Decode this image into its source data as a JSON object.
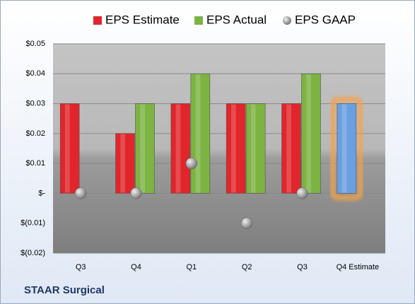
{
  "chart_data": {
    "type": "bar",
    "title": "STAAR Surgical",
    "categories": [
      "Q3",
      "Q4",
      "Q1",
      "Q2",
      "Q3",
      "Q4 Estimate"
    ],
    "series": [
      {
        "name": "EPS Estimate",
        "color": "#e0262b",
        "colors": [
          "#e0262b",
          "#e0262b",
          "#e0262b",
          "#e0262b",
          "#e0262b",
          "#6a9fe0"
        ],
        "values": [
          0.03,
          0.02,
          0.03,
          0.03,
          0.03,
          0.03
        ]
      },
      {
        "name": "EPS Actual",
        "color": "#7cb342",
        "values": [
          null,
          0.03,
          0.04,
          0.03,
          0.04,
          null
        ]
      },
      {
        "name": "EPS GAAP",
        "color": "#9a9a9a",
        "marker": "sphere",
        "values": [
          0,
          0,
          0.01,
          -0.01,
          0,
          null
        ]
      }
    ],
    "ylim": [
      -0.02,
      0.05
    ],
    "yticks": [
      {
        "value": -0.02,
        "label": "$(0.02)"
      },
      {
        "value": -0.01,
        "label": "$(0.01)"
      },
      {
        "value": 0,
        "label": "$-"
      },
      {
        "value": 0.01,
        "label": "$0.01"
      },
      {
        "value": 0.02,
        "label": "$0.02"
      },
      {
        "value": 0.03,
        "label": "$0.03"
      },
      {
        "value": 0.04,
        "label": "$0.04"
      },
      {
        "value": 0.05,
        "label": "$0.05"
      }
    ],
    "grid": true
  }
}
